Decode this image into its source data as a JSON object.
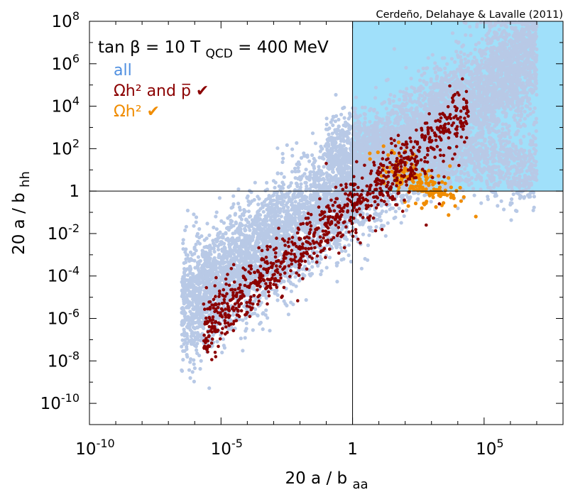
{
  "chart_data": {
    "type": "scatter",
    "title": "",
    "credit": "Cerdeño, Delahaye & Lavalle (2011)",
    "annotation": {
      "prefix": "tan β = 10  T",
      "sub": "QCD",
      "suffix": " = 400 MeV"
    },
    "xlabel": {
      "main": "20 a / b",
      "sub": "aa"
    },
    "ylabel": {
      "main": "20 a / b",
      "sub": "hh"
    },
    "x_log10_range": [
      -10,
      8
    ],
    "y_log10_range": [
      -11,
      8
    ],
    "x_ticks": [
      {
        "base": "10",
        "exp": "-10",
        "log": -10
      },
      {
        "base": "10",
        "exp": "-5",
        "log": -5
      },
      {
        "base": "1",
        "exp": "",
        "log": 0
      },
      {
        "base": "10",
        "exp": "5",
        "log": 5
      }
    ],
    "y_ticks": [
      {
        "base": "10",
        "exp": "8",
        "log": 8
      },
      {
        "base": "10",
        "exp": "6",
        "log": 6
      },
      {
        "base": "10",
        "exp": "4",
        "log": 4
      },
      {
        "base": "10",
        "exp": "2",
        "log": 2
      },
      {
        "base": "1",
        "exp": "",
        "log": 0
      },
      {
        "base": "10",
        "exp": "-2",
        "log": -2
      },
      {
        "base": "10",
        "exp": "-4",
        "log": -4
      },
      {
        "base": "10",
        "exp": "-6",
        "log": -6
      },
      {
        "base": "10",
        "exp": "-8",
        "log": -8
      },
      {
        "base": "10",
        "exp": "-10",
        "log": -10
      }
    ],
    "reference_lines": {
      "x_log10": 0,
      "y_log10": 0
    },
    "shaded_region": {
      "x_log10_min": 0,
      "y_log10_min": 0,
      "color": "#a0e0fa"
    },
    "legend": [
      {
        "label": "all",
        "color": "#4f8fe0"
      },
      {
        "label": "Ωh² and p̅ ✔",
        "color": "#8b0000"
      },
      {
        "label": "Ωh² ✔",
        "color": "#f08c00"
      }
    ],
    "series": [
      {
        "name": "all",
        "color": "#b8c9e6",
        "count": 9000,
        "seed": 11,
        "band_intercept": 0.3,
        "band_slope": 0.9,
        "band_sigma": 1.3,
        "x_log10_min": -6.5,
        "x_log10_max": 7.0,
        "upper_x_log10_min": -1.0,
        "upper_fraction": 0.18,
        "upper_y_log10_mean": 2.0,
        "upper_y_sigma": 0.9
      },
      {
        "name": "Ωh² and p̅ ✔",
        "color": "#8b0000",
        "count": 950,
        "seed": 23,
        "band_intercept": -0.8,
        "band_slope": 1.0,
        "band_sigma": 0.7,
        "x_log10_min": -5.7,
        "x_log10_max": 4.4,
        "extra_points": [
          [
            -1.0,
            1.3
          ],
          [
            1.7,
            1.2
          ],
          [
            3.3,
            -0.6
          ],
          [
            2.8,
            -1.6
          ]
        ]
      },
      {
        "name": "Ωh² ✔",
        "color": "#f08c00",
        "count": 170,
        "seed": 37,
        "cluster_x_log10_range": [
          0.6,
          4.9
        ],
        "cluster_y_log10_range": [
          -1.2,
          2.3
        ],
        "cluster_center_x": 2.6,
        "cluster_center_y": 0.4,
        "cluster_sigma": 0.9
      }
    ]
  }
}
